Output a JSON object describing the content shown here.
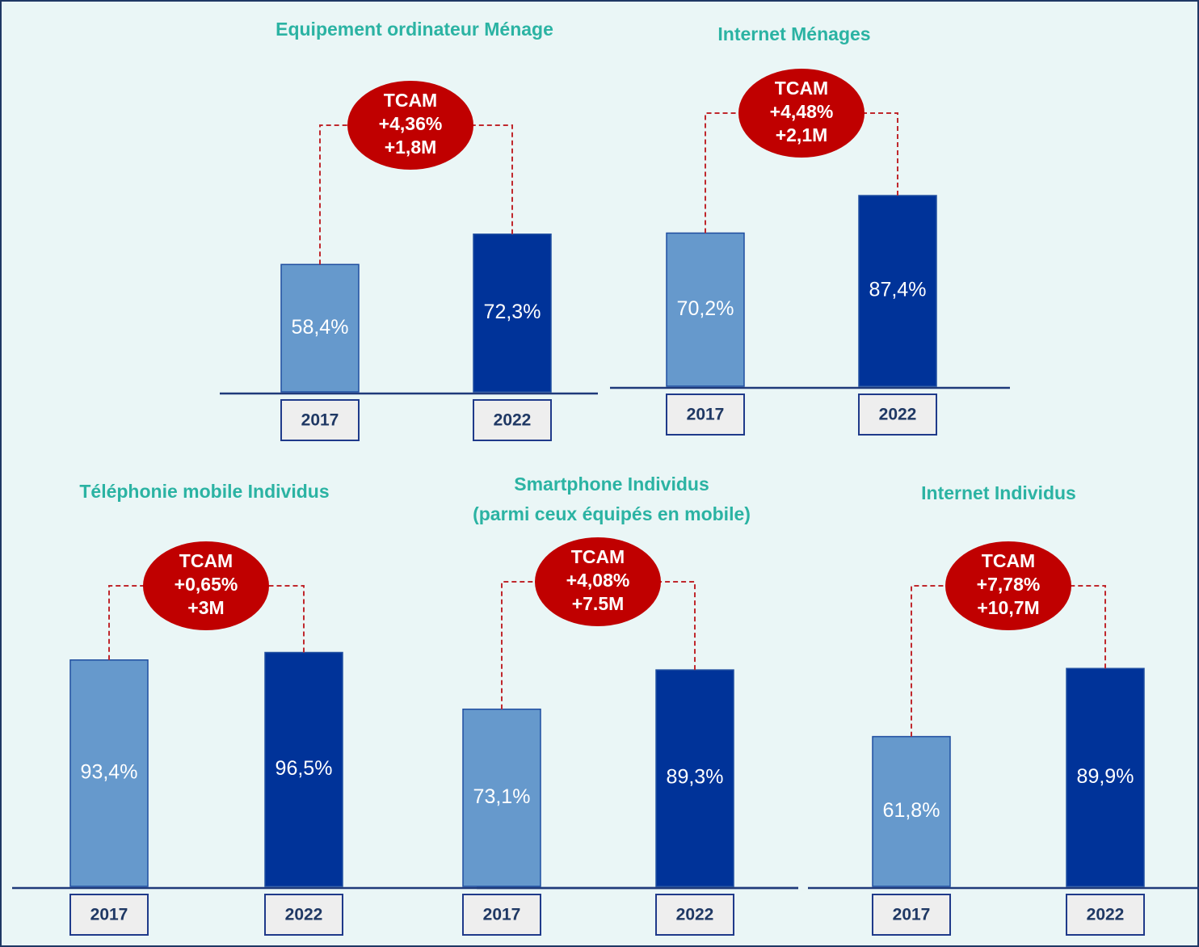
{
  "chart_data": [
    {
      "type": "bar",
      "title": "Equipement ordinateur Ménage",
      "categories": [
        "2017",
        "2022"
      ],
      "values": [
        58.4,
        72.3
      ],
      "value_labels": [
        "58,4%",
        "72,3%"
      ],
      "colors": [
        "#6699cc",
        "#003399"
      ],
      "annotation": [
        "TCAM",
        "+4,36%",
        "+1,8M"
      ]
    },
    {
      "type": "bar",
      "title": "Internet Ménages",
      "categories": [
        "2017",
        "2022"
      ],
      "values": [
        70.2,
        87.4
      ],
      "value_labels": [
        "70,2%",
        "87,4%"
      ],
      "colors": [
        "#6699cc",
        "#003399"
      ],
      "annotation": [
        "TCAM",
        "+4,48%",
        "+2,1M"
      ]
    },
    {
      "type": "bar",
      "title": "Téléphonie mobile Individus",
      "categories": [
        "2017",
        "2022"
      ],
      "values": [
        93.4,
        96.5
      ],
      "value_labels": [
        "93,4%",
        "96,5%"
      ],
      "colors": [
        "#6699cc",
        "#003399"
      ],
      "annotation": [
        "TCAM",
        "+0,65%",
        "+3M"
      ]
    },
    {
      "type": "bar",
      "title": "Smartphone Individus",
      "subtitle": "(parmi ceux équipés en mobile)",
      "categories": [
        "2017",
        "2022"
      ],
      "values": [
        73.1,
        89.3
      ],
      "value_labels": [
        "73,1%",
        "89,3%"
      ],
      "colors": [
        "#6699cc",
        "#003399"
      ],
      "annotation": [
        "TCAM",
        "+4,08%",
        "+7.5M"
      ]
    },
    {
      "type": "bar",
      "title": "Internet Individus",
      "categories": [
        "2017",
        "2022"
      ],
      "values": [
        61.8,
        89.9
      ],
      "value_labels": [
        "61,8%",
        "89,9%"
      ],
      "colors": [
        "#6699cc",
        "#003399"
      ],
      "annotation": [
        "TCAM",
        "+7,78%",
        "+10,7M"
      ]
    }
  ]
}
